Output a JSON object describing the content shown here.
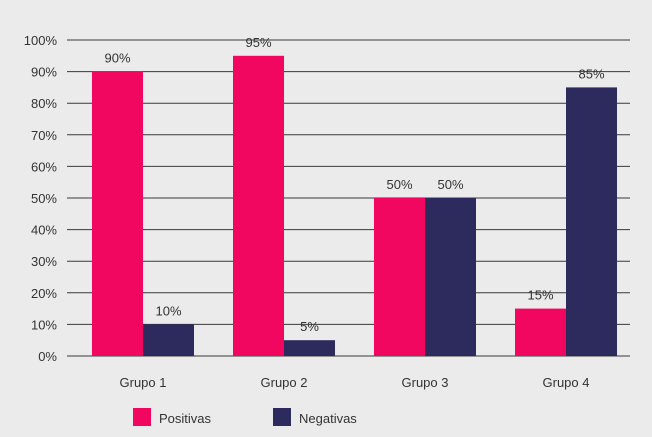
{
  "chart_data": {
    "type": "bar",
    "categories": [
      "Grupo 1",
      "Grupo 2",
      "Grupo 3",
      "Grupo 4"
    ],
    "series": [
      {
        "name": "Positivas",
        "values": [
          90,
          95,
          50,
          15
        ],
        "color": "#f1075f"
      },
      {
        "name": "Negativas",
        "values": [
          10,
          5,
          50,
          85
        ],
        "color": "#2d2a5e"
      }
    ],
    "ylim": [
      0,
      100
    ],
    "yticks": [
      0,
      10,
      20,
      30,
      40,
      50,
      60,
      70,
      80,
      90,
      100
    ],
    "value_suffix": "%",
    "grid": true,
    "legend_position": "bottom-left",
    "background": "#ebebeb",
    "grid_color": "#3a3a3a"
  }
}
